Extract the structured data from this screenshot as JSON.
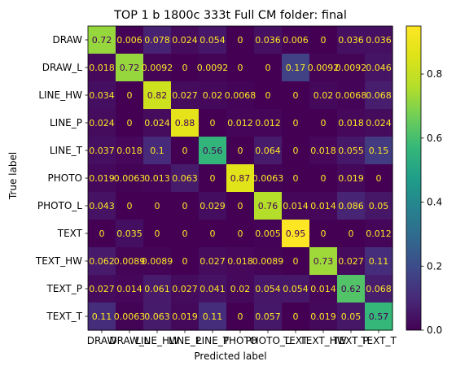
{
  "chart_data": {
    "type": "heatmap",
    "title": "TOP 1 b 1800c 333t  Full CM folder: final",
    "xlabel": "Predicted label",
    "ylabel": "True label",
    "categories": [
      "DRAW",
      "DRAW_L",
      "LINE_HW",
      "LINE_P",
      "LINE_T",
      "PHOTO",
      "PHOTO_L",
      "TEXT",
      "TEXT_HW",
      "TEXT_P",
      "TEXT_T"
    ],
    "matrix": [
      [
        0.72,
        0.006,
        0.078,
        0.024,
        0.054,
        0,
        0.036,
        0.006,
        0,
        0.036,
        0.036
      ],
      [
        0.018,
        0.72,
        0.0092,
        0,
        0.0092,
        0,
        0,
        0.17,
        0.0092,
        0.0092,
        0.046
      ],
      [
        0.034,
        0,
        0.82,
        0.027,
        0.02,
        0.0068,
        0,
        0,
        0.02,
        0.0068,
        0.068
      ],
      [
        0.024,
        0,
        0.024,
        0.88,
        0,
        0.012,
        0.012,
        0,
        0,
        0.018,
        0.024
      ],
      [
        0.037,
        0.018,
        0.1,
        0,
        0.56,
        0,
        0.064,
        0,
        0.018,
        0.055,
        0.15
      ],
      [
        0.019,
        0.0063,
        0.013,
        0.063,
        0,
        0.87,
        0.0063,
        0,
        0,
        0.019,
        0
      ],
      [
        0.043,
        0,
        0,
        0,
        0.029,
        0,
        0.76,
        0.014,
        0.014,
        0.086,
        0.05
      ],
      [
        0,
        0.035,
        0,
        0,
        0,
        0,
        0.005,
        0.95,
        0,
        0,
        0.012
      ],
      [
        0.062,
        0.0089,
        0.0089,
        0,
        0.027,
        0.018,
        0.0089,
        0,
        0.73,
        0.027,
        0.11
      ],
      [
        0.027,
        0.014,
        0.061,
        0.027,
        0.041,
        0.02,
        0.054,
        0.054,
        0.014,
        0.62,
        0.068
      ],
      [
        0.11,
        0.0063,
        0.063,
        0.019,
        0.11,
        0,
        0.057,
        0,
        0.019,
        0.05,
        0.57
      ]
    ],
    "cell_labels": [
      [
        "0.72",
        "0.006",
        "0.078",
        "0.024",
        "0.054",
        "0",
        "0.036",
        "0.006",
        "0",
        "0.036",
        "0.036"
      ],
      [
        "0.018",
        "0.72",
        "0.0092",
        "0",
        "0.0092",
        "0",
        "0",
        "0.17",
        "0.0092",
        "0.0092",
        "0.046"
      ],
      [
        "0.034",
        "0",
        "0.82",
        "0.027",
        "0.02",
        "0.0068",
        "0",
        "0",
        "0.02",
        "0.0068",
        "0.068"
      ],
      [
        "0.024",
        "0",
        "0.024",
        "0.88",
        "0",
        "0.012",
        "0.012",
        "0",
        "0",
        "0.018",
        "0.024"
      ],
      [
        "0.037",
        "0.018",
        "0.1",
        "0",
        "0.56",
        "0",
        "0.064",
        "0",
        "0.018",
        "0.055",
        "0.15"
      ],
      [
        "0.019",
        "0.0063",
        "0.013",
        "0.063",
        "0",
        "0.87",
        "0.0063",
        "0",
        "0",
        "0.019",
        "0"
      ],
      [
        "0.043",
        "0",
        "0",
        "0",
        "0.029",
        "0",
        "0.76",
        "0.014",
        "0.014",
        "0.086",
        "0.05"
      ],
      [
        "0",
        "0.035",
        "0",
        "0",
        "0",
        "0",
        "0.005",
        "0.95",
        "0",
        "0",
        "0.012"
      ],
      [
        "0.062",
        "0.0089",
        "0.0089",
        "0",
        "0.027",
        "0.018",
        "0.0089",
        "0",
        "0.73",
        "0.027",
        "0.11"
      ],
      [
        "0.027",
        "0.014",
        "0.061",
        "0.027",
        "0.041",
        "0.02",
        "0.054",
        "0.054",
        "0.014",
        "0.62",
        "0.068"
      ],
      [
        "0.11",
        "0.0063",
        "0.063",
        "0.019",
        "0.11",
        "0",
        "0.057",
        "0",
        "0.019",
        "0.05",
        "0.57"
      ]
    ],
    "colorbar": {
      "min": 0,
      "max": 0.95,
      "ticks": [
        0.0,
        0.2,
        0.4,
        0.6,
        0.8
      ],
      "tick_labels": [
        "0.0",
        "0.2",
        "0.4",
        "0.6",
        "0.8"
      ]
    },
    "colormap": "viridis",
    "label_dark_color": "#440154",
    "label_light_color": "#fde725",
    "grid": false
  }
}
